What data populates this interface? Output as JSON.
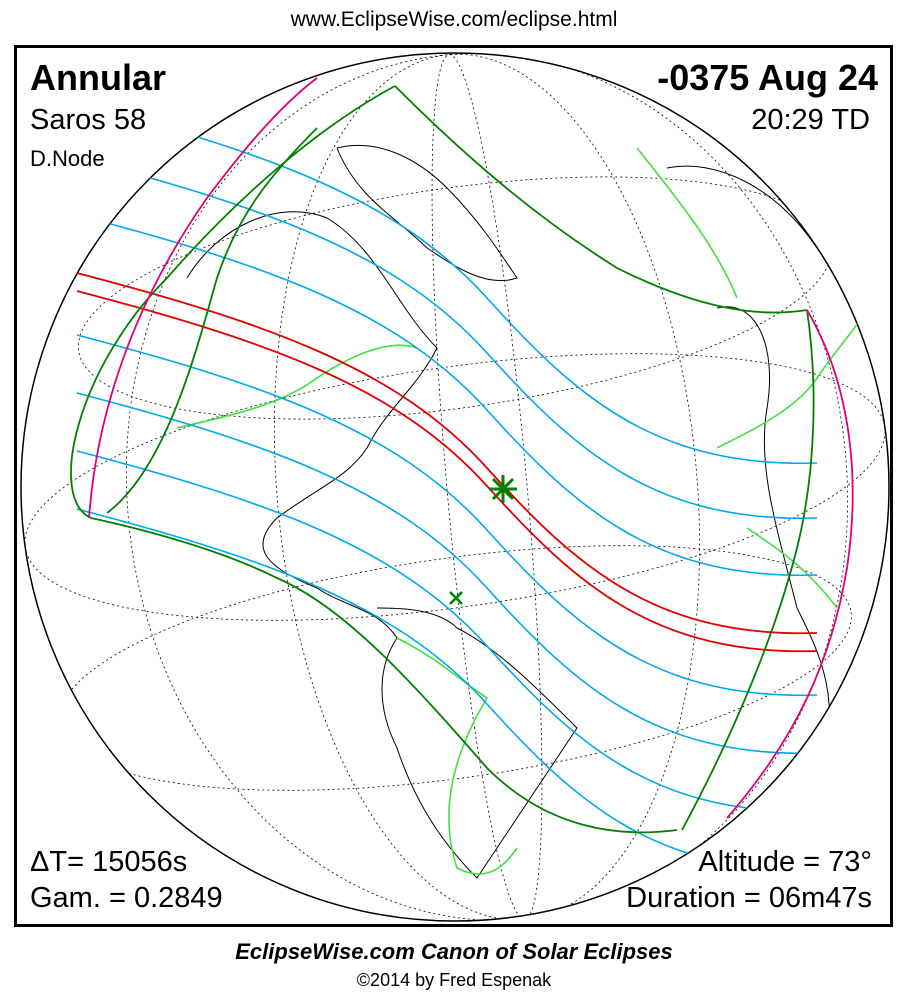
{
  "header": {
    "url": "www.EclipseWise.com/eclipse.html"
  },
  "eclipse": {
    "type": "Annular",
    "date": "-0375 Aug 24",
    "saros": "Saros  58",
    "time": "20:29 TD",
    "node": "D.Node",
    "delta_t": "ΔT=  15056s",
    "gamma": "Gam. = 0.2849",
    "altitude": "Altitude = 73°",
    "duration": "Duration = 06m47s"
  },
  "footer": {
    "title": "EclipseWise.com Canon of Solar Eclipses",
    "copyright": "©2014 by Fred Espenak"
  },
  "colors": {
    "central_path": "#e00000",
    "penumbral_lines": "#00a0e8",
    "limits": "#008000",
    "borders": "#40e040",
    "rise_set": "#e0007a"
  },
  "markers": {
    "greatest_eclipse": "star-icon",
    "greatest_duration": "x-icon"
  }
}
